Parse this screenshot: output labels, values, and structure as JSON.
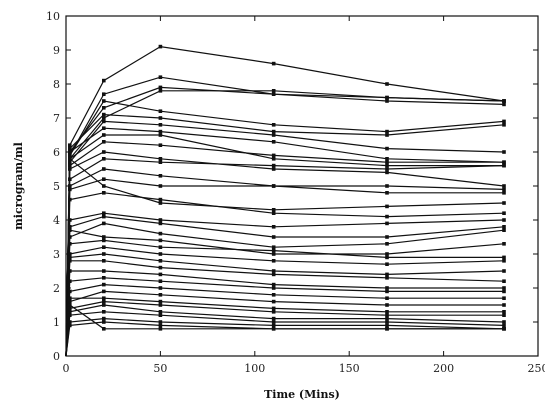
{
  "chart_data": {
    "type": "line",
    "title": "",
    "xlabel": "Time (Mins)",
    "ylabel": "microgram/ml",
    "xlim": [
      0,
      250
    ],
    "ylim": [
      0,
      10
    ],
    "xticks": [
      0,
      50,
      100,
      150,
      200,
      250
    ],
    "yticks": [
      0,
      1,
      2,
      3,
      4,
      5,
      6,
      7,
      8,
      9,
      10
    ],
    "grid": false,
    "legend": "none",
    "x": [
      0,
      2,
      20,
      50,
      110,
      170,
      232
    ],
    "series": [
      {
        "values": [
          0,
          6.2,
          8.1,
          9.1,
          8.6,
          8.0,
          7.5
        ]
      },
      {
        "values": [
          0,
          5.9,
          7.7,
          8.2,
          7.7,
          7.6,
          7.5
        ]
      },
      {
        "values": [
          0,
          6.0,
          7.3,
          7.9,
          7.7,
          7.5,
          7.4
        ]
      },
      {
        "values": [
          0,
          5.8,
          7.0,
          7.8,
          7.8,
          7.6,
          7.5
        ]
      },
      {
        "values": [
          0,
          5.9,
          7.5,
          7.2,
          6.8,
          6.6,
          6.9
        ]
      },
      {
        "values": [
          0,
          6.1,
          7.1,
          7.0,
          6.6,
          6.5,
          6.8
        ]
      },
      {
        "values": [
          0,
          5.7,
          6.9,
          6.8,
          6.5,
          6.1,
          6.0
        ]
      },
      {
        "values": [
          0,
          6.0,
          6.7,
          6.6,
          6.3,
          5.8,
          5.7
        ]
      },
      {
        "values": [
          0,
          5.8,
          6.5,
          6.5,
          5.8,
          5.6,
          5.6
        ]
      },
      {
        "values": [
          0,
          5.6,
          6.3,
          6.2,
          5.9,
          5.7,
          5.7
        ]
      },
      {
        "values": [
          0,
          5.5,
          6.0,
          5.8,
          5.5,
          5.4,
          5.0
        ]
      },
      {
        "values": [
          0,
          5.2,
          5.8,
          5.7,
          5.6,
          5.5,
          5.6
        ]
      },
      {
        "values": [
          0,
          5.0,
          5.5,
          5.3,
          5.0,
          5.0,
          4.9
        ]
      },
      {
        "values": [
          0,
          4.9,
          5.2,
          5.0,
          5.0,
          4.8,
          4.8
        ]
      },
      {
        "values": [
          0,
          5.8,
          5.0,
          4.5,
          4.3,
          4.4,
          4.5
        ]
      },
      {
        "values": [
          0,
          4.6,
          4.8,
          4.6,
          4.2,
          4.1,
          4.2
        ]
      },
      {
        "values": [
          0,
          4.0,
          4.2,
          4.0,
          3.8,
          3.9,
          4.0
        ]
      },
      {
        "values": [
          0,
          3.8,
          4.1,
          3.9,
          3.5,
          3.5,
          3.8
        ]
      },
      {
        "values": [
          0,
          3.5,
          3.9,
          3.6,
          3.2,
          3.3,
          3.7
        ]
      },
      {
        "values": [
          0,
          3.7,
          3.5,
          3.4,
          3.0,
          3.0,
          3.3
        ]
      },
      {
        "values": [
          0,
          3.3,
          3.4,
          3.2,
          3.1,
          2.9,
          2.9
        ]
      },
      {
        "values": [
          0,
          3.0,
          3.2,
          3.0,
          2.8,
          2.7,
          2.8
        ]
      },
      {
        "values": [
          0,
          2.9,
          3.0,
          2.8,
          2.5,
          2.4,
          2.5
        ]
      },
      {
        "values": [
          0,
          2.8,
          2.8,
          2.6,
          2.4,
          2.3,
          2.2
        ]
      },
      {
        "values": [
          0,
          2.5,
          2.5,
          2.4,
          2.1,
          2.0,
          2.0
        ]
      },
      {
        "values": [
          0,
          2.2,
          2.3,
          2.2,
          2.0,
          1.9,
          1.9
        ]
      },
      {
        "values": [
          0,
          1.9,
          2.1,
          2.0,
          1.8,
          1.7,
          1.7
        ]
      },
      {
        "values": [
          0,
          1.6,
          1.9,
          1.8,
          1.6,
          1.5,
          1.5
        ]
      },
      {
        "values": [
          0,
          1.7,
          1.7,
          1.6,
          1.4,
          1.3,
          1.3
        ]
      },
      {
        "values": [
          0,
          1.4,
          1.6,
          1.5,
          1.3,
          1.2,
          1.2
        ]
      },
      {
        "values": [
          0,
          1.3,
          1.5,
          1.3,
          1.1,
          1.1,
          1.0
        ]
      },
      {
        "values": [
          0,
          1.2,
          1.3,
          1.2,
          1.0,
          1.0,
          0.9
        ]
      },
      {
        "values": [
          0,
          1.0,
          1.1,
          1.0,
          0.9,
          0.9,
          0.8
        ]
      },
      {
        "values": [
          0,
          0.9,
          1.0,
          0.9,
          0.8,
          0.8,
          0.8
        ]
      },
      {
        "values": [
          0,
          1.5,
          0.8,
          0.8,
          0.8,
          0.8,
          0.8
        ]
      }
    ]
  }
}
